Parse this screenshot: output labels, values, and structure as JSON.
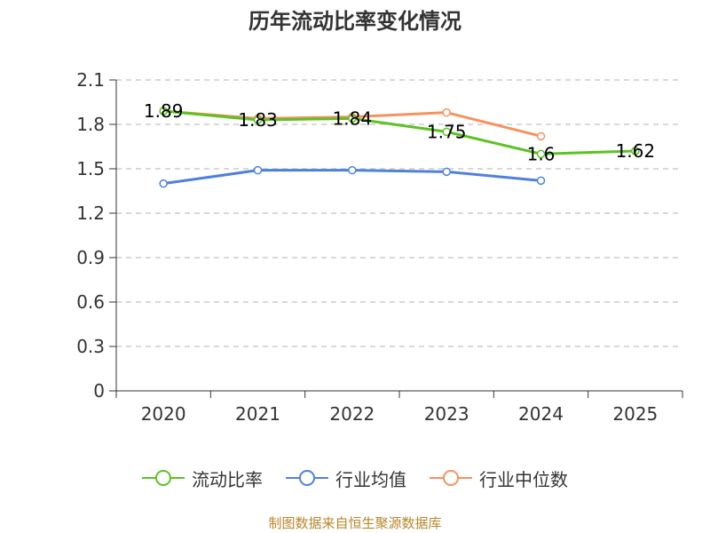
{
  "chart_data": {
    "type": "line",
    "title": "历年流动比率变化情况",
    "categories": [
      "2020",
      "2021",
      "2022",
      "2023",
      "2024",
      "2025"
    ],
    "ylim": [
      0,
      2.1
    ],
    "yticks": [
      "0",
      "0.3",
      "0.6",
      "0.9",
      "1.2",
      "1.5",
      "1.8",
      "2.1"
    ],
    "ytick_values": [
      0,
      0.3,
      0.6,
      0.9,
      1.2,
      1.5,
      1.8,
      2.1
    ],
    "grid": true,
    "legend_position": "bottom-center",
    "series": [
      {
        "name": "流动比率",
        "color": "#5cc223",
        "values": [
          1.89,
          1.83,
          1.84,
          1.75,
          1.6,
          1.62
        ],
        "labels": [
          "1.89",
          "1.83",
          "1.84",
          "1.75",
          "1.6",
          "1.62"
        ]
      },
      {
        "name": "行业均值",
        "color": "#4f81d9",
        "values": [
          1.4,
          1.49,
          1.49,
          1.48,
          1.42,
          null
        ]
      },
      {
        "name": "行业中位数",
        "color": "#f5925e",
        "values": [
          1.89,
          1.84,
          1.85,
          1.88,
          1.72,
          null
        ]
      }
    ]
  },
  "source": "制图数据来自恒生聚源数据库"
}
